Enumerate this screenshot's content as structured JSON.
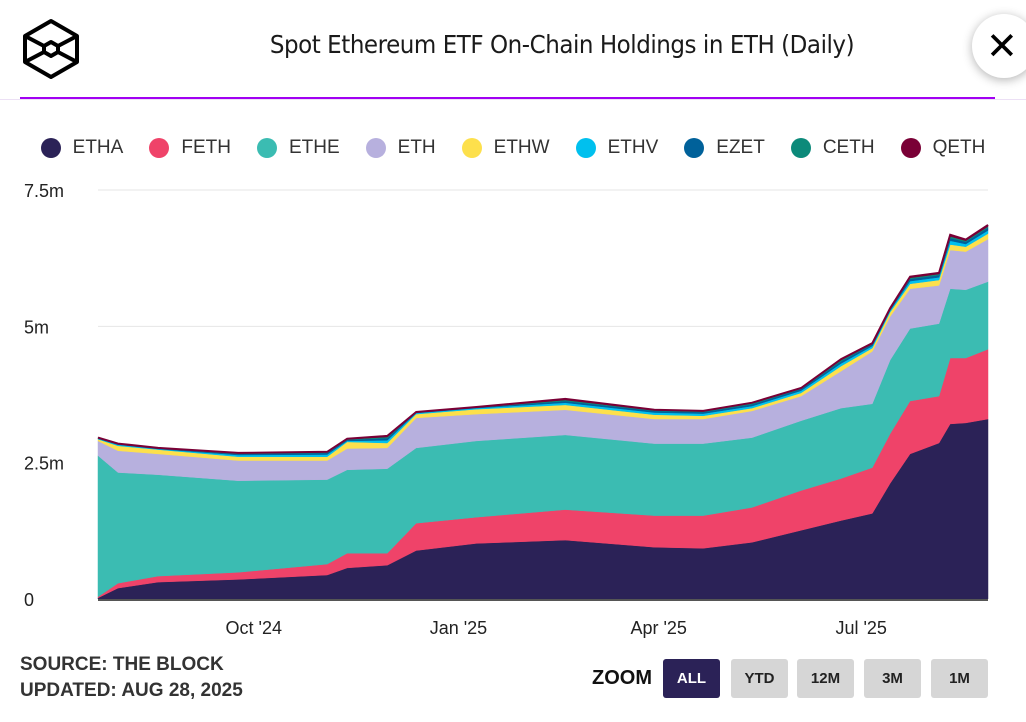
{
  "header": {
    "title": "Spot Ethereum ETF On-Chain Holdings in ETH (Daily)",
    "logo": "The Block",
    "close_icon": "close-icon"
  },
  "footer": {
    "source": "SOURCE: THE BLOCK",
    "updated": "UPDATED: AUG 28, 2025"
  },
  "zoom": {
    "label": "ZOOM",
    "buttons": [
      "ALL",
      "YTD",
      "12M",
      "3M",
      "1M"
    ],
    "selected": "ALL"
  },
  "chart_data": {
    "type": "area",
    "stacked": true,
    "title": "Spot Ethereum ETF On-Chain Holdings in ETH (Daily)",
    "xlabel": "",
    "ylabel": "",
    "ylim": [
      0,
      7500000
    ],
    "y_ticks": [
      0,
      2500000,
      5000000,
      7500000
    ],
    "y_tick_labels": [
      "0",
      "2.5m",
      "5m",
      "7.5m"
    ],
    "x_ticks": [
      "2024-10-01",
      "2025-01-01",
      "2025-04-01",
      "2025-07-01"
    ],
    "x_tick_labels": [
      "Oct '24",
      "Jan '25",
      "Apr '25",
      "Jul '25"
    ],
    "xlim": [
      "2024-07-23",
      "2025-08-27"
    ],
    "grid": "horizontal",
    "legend": "top",
    "x": [
      "2024-07-23",
      "2024-08-01",
      "2024-08-19",
      "2024-09-24",
      "2024-11-03",
      "2024-11-12",
      "2024-11-30",
      "2024-12-13",
      "2025-01-09",
      "2025-02-18",
      "2025-03-30",
      "2025-04-21",
      "2025-05-13",
      "2025-06-04",
      "2025-06-22",
      "2025-07-06",
      "2025-07-14",
      "2025-07-23",
      "2025-08-05",
      "2025-08-10",
      "2025-08-17",
      "2025-08-27"
    ],
    "series": [
      {
        "name": "ETHA",
        "color": "#2b2257",
        "values": [
          0.02,
          0.2,
          0.31,
          0.36,
          0.44,
          0.57,
          0.62,
          0.89,
          1.02,
          1.08,
          0.95,
          0.93,
          1.04,
          1.26,
          1.44,
          1.57,
          2.12,
          2.66,
          2.86,
          3.21,
          3.23,
          3.3
        ]
      },
      {
        "name": "FETH",
        "color": "#ef4369",
        "values": [
          0.02,
          0.09,
          0.11,
          0.13,
          0.2,
          0.27,
          0.22,
          0.5,
          0.48,
          0.56,
          0.58,
          0.6,
          0.64,
          0.73,
          0.77,
          0.84,
          0.91,
          0.97,
          0.86,
          1.21,
          1.19,
          1.28
        ]
      },
      {
        "name": "ETHE",
        "color": "#3bbcb2",
        "values": [
          2.59,
          2.03,
          1.86,
          1.68,
          1.55,
          1.53,
          1.55,
          1.38,
          1.4,
          1.37,
          1.32,
          1.32,
          1.28,
          1.28,
          1.29,
          1.17,
          1.35,
          1.33,
          1.33,
          1.27,
          1.25,
          1.24
        ]
      },
      {
        "name": "ETH",
        "color": "#b7b0de",
        "values": [
          0.27,
          0.4,
          0.38,
          0.37,
          0.35,
          0.39,
          0.38,
          0.55,
          0.49,
          0.46,
          0.45,
          0.45,
          0.49,
          0.45,
          0.68,
          0.96,
          0.8,
          0.73,
          0.7,
          0.71,
          0.7,
          0.78
        ]
      },
      {
        "name": "ETHW",
        "color": "#fde04c",
        "values": [
          0.03,
          0.09,
          0.08,
          0.07,
          0.07,
          0.12,
          0.09,
          0.07,
          0.09,
          0.09,
          0.08,
          0.06,
          0.05,
          0.06,
          0.09,
          0.06,
          0.08,
          0.09,
          0.1,
          0.1,
          0.09,
          0.1
        ]
      },
      {
        "name": "ETHV",
        "color": "#00c0ee",
        "values": [
          0.01,
          0.02,
          0.01,
          0.03,
          0.04,
          0.02,
          0.05,
          0.02,
          0.02,
          0.04,
          0.04,
          0.04,
          0.04,
          0.04,
          0.05,
          0.04,
          0.03,
          0.05,
          0.05,
          0.07,
          0.05,
          0.06
        ]
      },
      {
        "name": "EZET",
        "color": "#00619a",
        "values": [
          0.01,
          0.01,
          0.01,
          0.02,
          0.03,
          0.02,
          0.04,
          0.01,
          0.01,
          0.03,
          0.03,
          0.03,
          0.03,
          0.03,
          0.04,
          0.03,
          0.02,
          0.04,
          0.04,
          0.05,
          0.04,
          0.05
        ]
      },
      {
        "name": "CETH",
        "color": "#0c8a7a",
        "values": [
          0,
          0,
          0,
          0.01,
          0.01,
          0.01,
          0.02,
          0,
          0,
          0.02,
          0.01,
          0.01,
          0.02,
          0.01,
          0.02,
          0.01,
          0.01,
          0.02,
          0.02,
          0.03,
          0.02,
          0.02
        ]
      },
      {
        "name": "QETH",
        "color": "#7a0036",
        "values": [
          0.01,
          0.01,
          0.01,
          0.01,
          0.01,
          0.01,
          0.02,
          0.01,
          0.01,
          0.02,
          0.01,
          0.01,
          0.01,
          0.01,
          0.02,
          0.01,
          0.01,
          0.02,
          0.02,
          0.03,
          0.02,
          0.03
        ]
      }
    ],
    "value_unit": "million ETH"
  }
}
